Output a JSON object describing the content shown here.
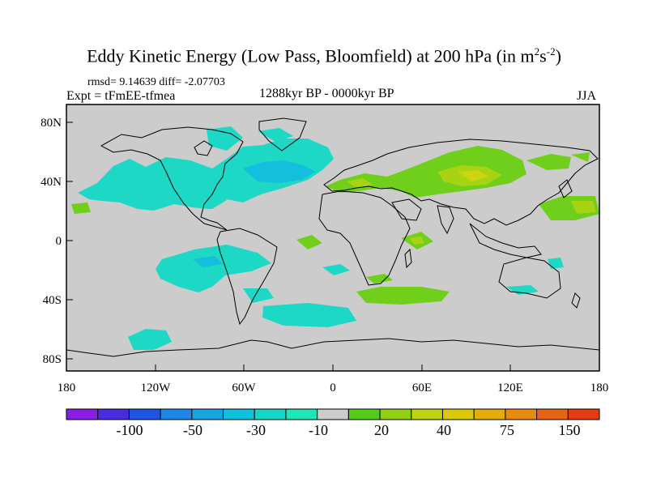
{
  "title": {
    "main": "Eddy Kinetic Energy (Low Pass, Bloomfield) at 200 hPa (in m",
    "sup1": "2",
    "mid": "s",
    "sup2": "-2",
    "close": ")"
  },
  "stats": "rmsd= 9.14639 diff= -2.07703",
  "experiment": "Expt = tFmEE-tfmea",
  "period": "1288kyr BP - 0000kyr BP",
  "season": "JJA",
  "axes": {
    "lat_ticks": [
      "80N",
      "40N",
      "0",
      "40S",
      "80S"
    ],
    "lon_ticks": [
      "180",
      "120W",
      "60W",
      "0",
      "60E",
      "120E",
      "180"
    ]
  },
  "colorbar": {
    "colors": [
      "#8a1ee6",
      "#4b2be0",
      "#1f55e6",
      "#1e87e6",
      "#16a5e1",
      "#12bfdc",
      "#12d6c8",
      "#1ee6b4",
      "#cccccc",
      "#55cc17",
      "#8fd017",
      "#bcd312",
      "#dcc80a",
      "#e6ad0a",
      "#e68a10",
      "#e66414",
      "#e63c14"
    ],
    "labels": [
      "-100",
      "-50",
      "-30",
      "-10",
      "20",
      "40",
      "75",
      "150"
    ]
  },
  "colors": {
    "background_field": "#cccccc",
    "neg_light": "#1ed8c6",
    "neg_mid": "#12bfdc",
    "neg_strong": "#16a5e1",
    "pos_light": "#70cf1a",
    "pos_mid": "#a8d214",
    "pos_strong": "#cdd412"
  }
}
